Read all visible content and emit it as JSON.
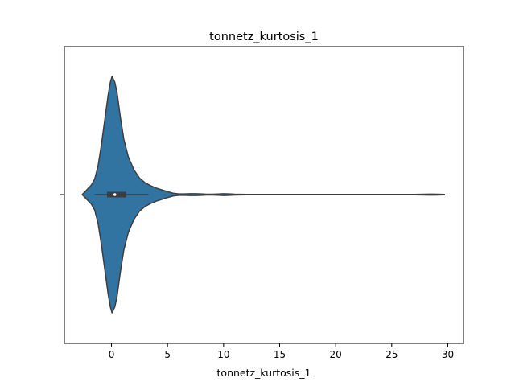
{
  "chart_data": {
    "type": "violin",
    "title": "tonnetz_kurtosis_1",
    "xlabel": "tonnetz_kurtosis_1",
    "ylabel": "",
    "xlim": [
      -4.2,
      31.4
    ],
    "xticks": [
      0,
      5,
      10,
      15,
      20,
      25,
      30
    ],
    "grid": false,
    "color": "#3274a1",
    "edge_color": "#3d3d3d",
    "density": [
      [
        -2.6,
        0.002
      ],
      [
        -2.4,
        0.02
      ],
      [
        -2.1,
        0.05
      ],
      [
        -1.8,
        0.08
      ],
      [
        -1.5,
        0.13
      ],
      [
        -1.2,
        0.24
      ],
      [
        -0.9,
        0.42
      ],
      [
        -0.6,
        0.63
      ],
      [
        -0.3,
        0.84
      ],
      [
        -0.1,
        0.95
      ],
      [
        0.05,
        1.0
      ],
      [
        0.3,
        0.95
      ],
      [
        0.5,
        0.86
      ],
      [
        0.8,
        0.65
      ],
      [
        1.1,
        0.47
      ],
      [
        1.5,
        0.32
      ],
      [
        2.0,
        0.21
      ],
      [
        2.5,
        0.14
      ],
      [
        3.0,
        0.1
      ],
      [
        3.5,
        0.075
      ],
      [
        4.0,
        0.055
      ],
      [
        4.5,
        0.04
      ],
      [
        5.0,
        0.025
      ],
      [
        5.5,
        0.012
      ],
      [
        6.0,
        0.006
      ],
      [
        6.5,
        0.006
      ],
      [
        7.0,
        0.008
      ],
      [
        7.5,
        0.008
      ],
      [
        8.0,
        0.006
      ],
      [
        8.5,
        0.003
      ],
      [
        9.0,
        0.003
      ],
      [
        9.5,
        0.005
      ],
      [
        10.0,
        0.008
      ],
      [
        10.5,
        0.006
      ],
      [
        11.0,
        0.003
      ],
      [
        12.0,
        0.002
      ],
      [
        15.0,
        0.0015
      ],
      [
        20.0,
        0.0015
      ],
      [
        25.0,
        0.0015
      ],
      [
        27.0,
        0.002
      ],
      [
        28.0,
        0.003
      ],
      [
        28.5,
        0.004
      ],
      [
        29.0,
        0.003
      ],
      [
        29.7,
        0.002
      ]
    ],
    "box": {
      "q1": -0.4,
      "median": 0.3,
      "q3": 1.3,
      "whisker_low": -1.5,
      "whisker_high": 3.3
    }
  }
}
